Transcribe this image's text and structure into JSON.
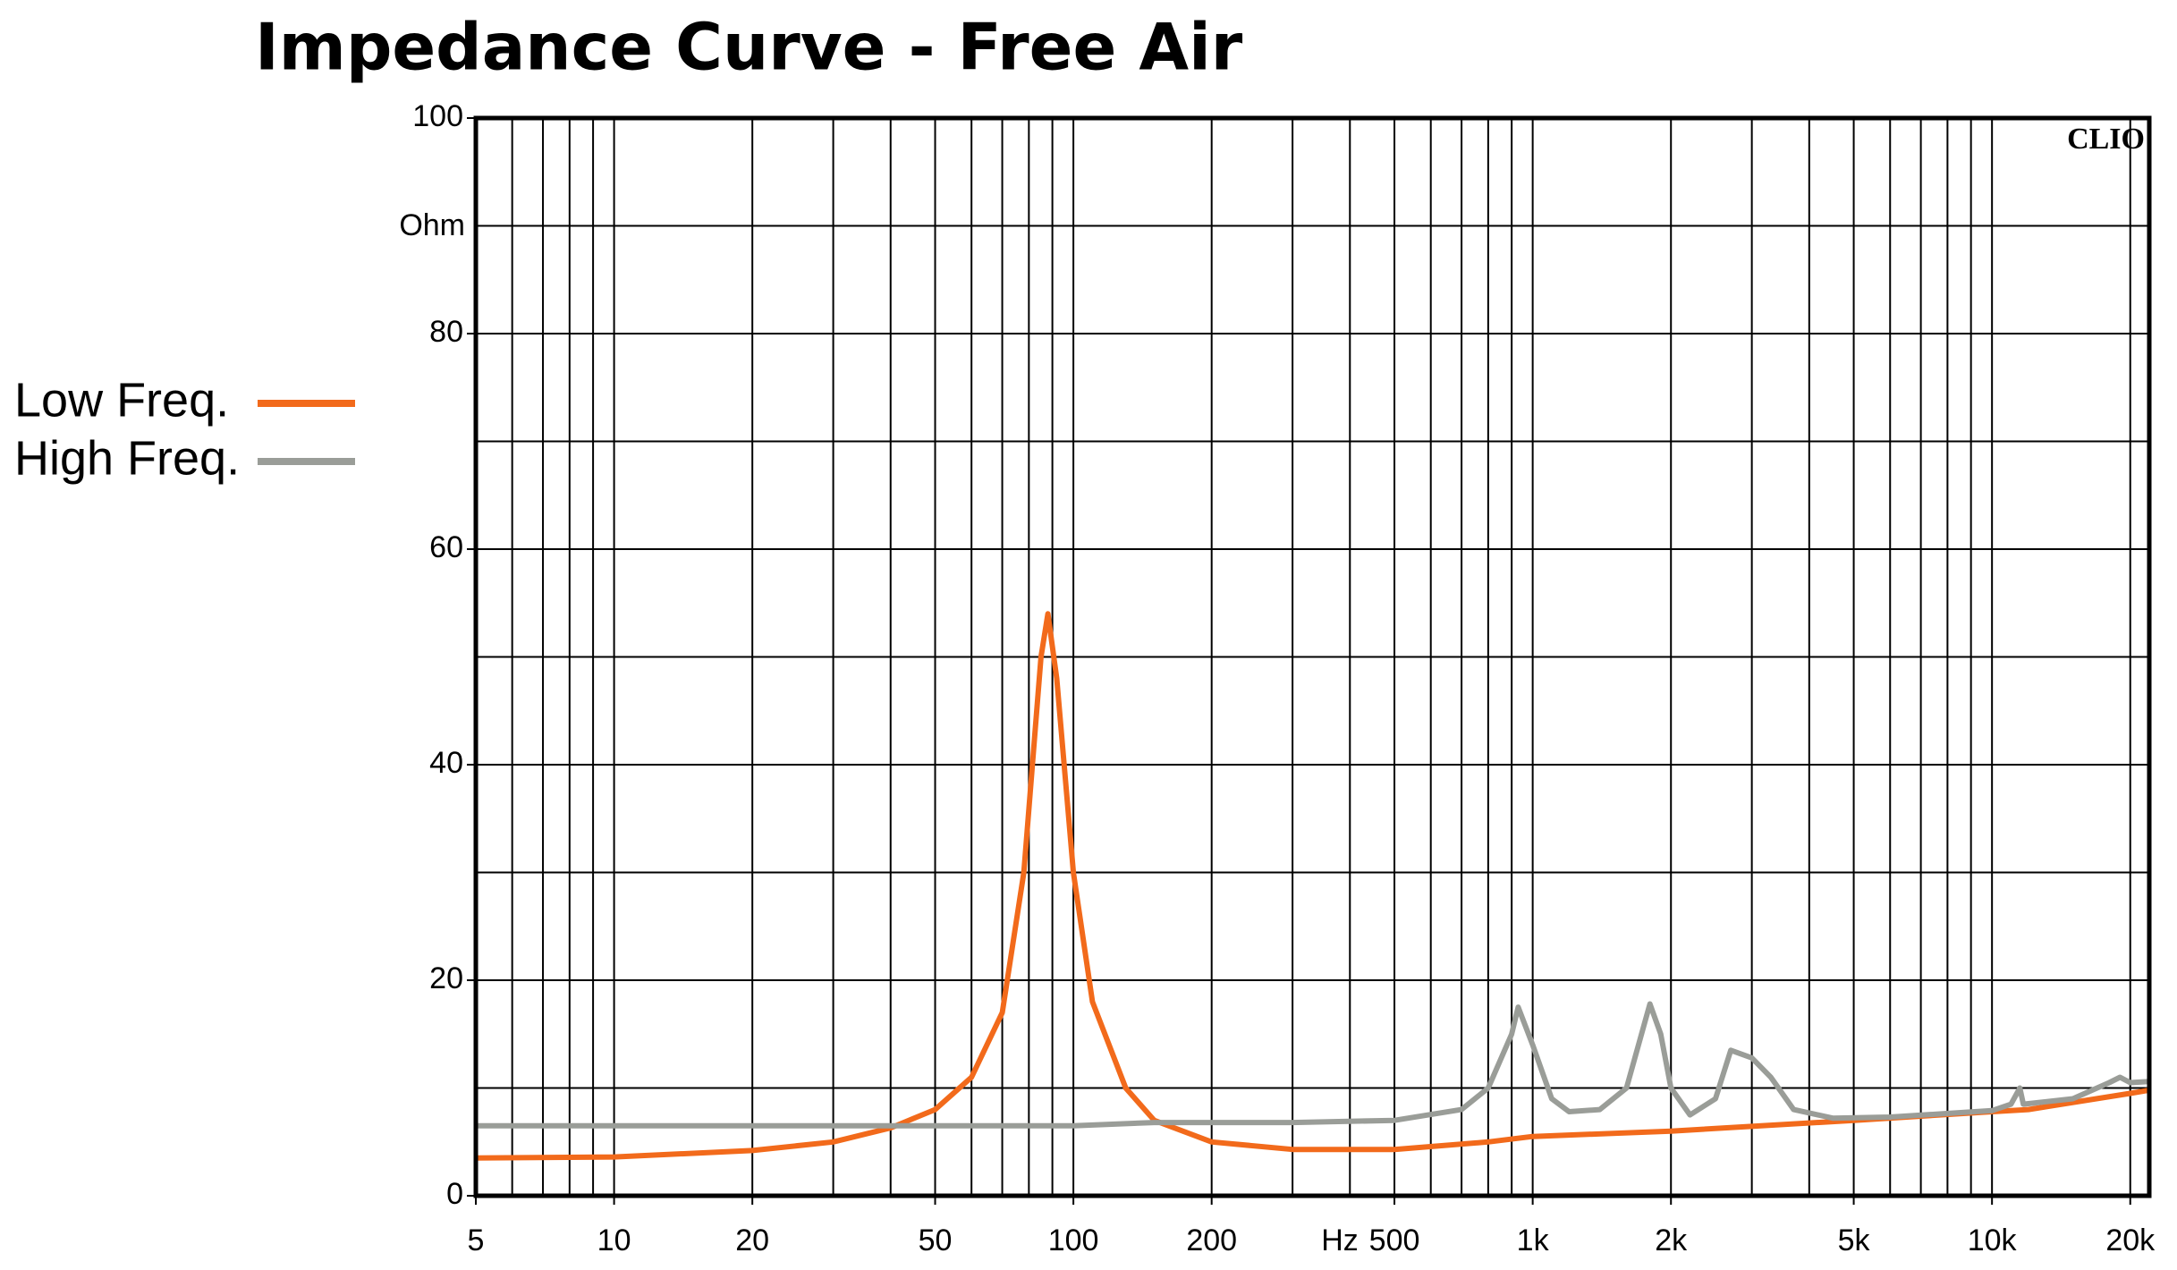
{
  "chart_data": {
    "type": "line",
    "title": "Impedance Curve - Free Air",
    "y_unit": "Ohm",
    "x_unit": "Hz",
    "watermark": "CLIO",
    "x_scale": "log",
    "grid": true,
    "legend": "left",
    "xlim": [
      5,
      22000
    ],
    "ylim": [
      0,
      100
    ],
    "xticks": [
      5,
      10,
      20,
      50,
      100,
      200,
      500,
      {
        "value": 1000,
        "label": "1k"
      },
      {
        "value": 2000,
        "label": "2k"
      },
      {
        "value": 5000,
        "label": "5k"
      },
      {
        "value": 10000,
        "label": "10k"
      },
      {
        "value": 20000,
        "label": "20k"
      }
    ],
    "yticks": [
      0,
      20,
      40,
      60,
      80,
      100
    ],
    "yminor": [
      10,
      30,
      50,
      70,
      90
    ],
    "series": [
      {
        "name": "Low Freq.",
        "color": "#f26a1b",
        "x": [
          5,
          10,
          20,
          30,
          40,
          50,
          60,
          70,
          78,
          85,
          88,
          92,
          100,
          110,
          130,
          150,
          200,
          300,
          500,
          800,
          1000,
          2000,
          5000,
          10000,
          12000,
          20000,
          22000
        ],
        "values": [
          3.5,
          3.6,
          4.2,
          5,
          6.3,
          8,
          11,
          17,
          30,
          50,
          54,
          48,
          30,
          18,
          10,
          7,
          5,
          4.3,
          4.3,
          5,
          5.5,
          6,
          7,
          7.8,
          8,
          9.5,
          9.8
        ]
      },
      {
        "name": "High Freq.",
        "color": "#9a9d98",
        "x": [
          5,
          100,
          150,
          300,
          500,
          700,
          800,
          900,
          930,
          1000,
          1100,
          1200,
          1400,
          1600,
          1800,
          1900,
          2000,
          2200,
          2500,
          2700,
          3000,
          3300,
          3700,
          4500,
          6000,
          10000,
          11000,
          11500,
          11700,
          15000,
          18000,
          19000,
          20000,
          22000
        ],
        "values": [
          6.5,
          6.5,
          6.8,
          6.8,
          7,
          8,
          10,
          15,
          17.5,
          14,
          9,
          7.8,
          8,
          10,
          17.8,
          15,
          10,
          7.5,
          9,
          13.5,
          12.8,
          11,
          8,
          7.2,
          7.3,
          7.9,
          8.5,
          10,
          8.5,
          9,
          10.5,
          11,
          10.5,
          10.6
        ]
      }
    ]
  }
}
